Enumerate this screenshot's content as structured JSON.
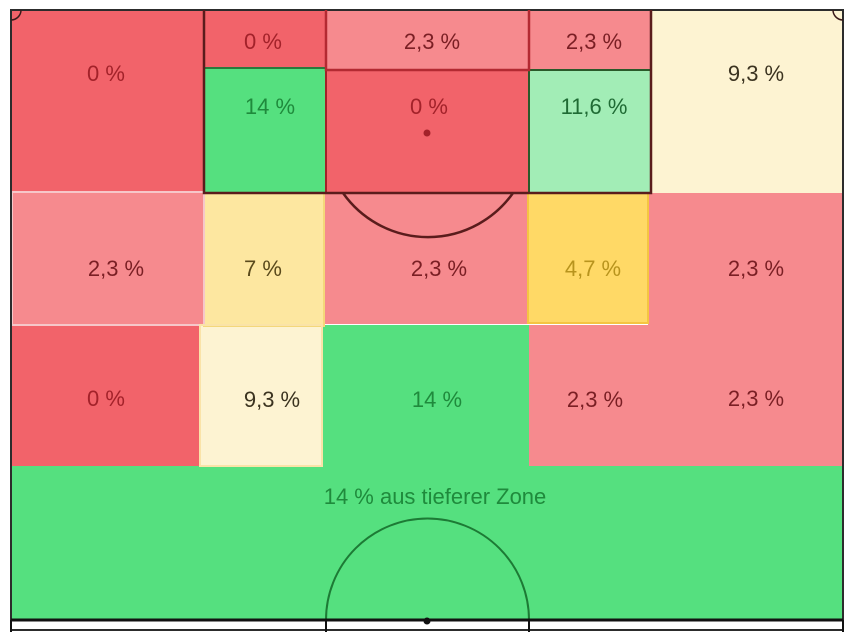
{
  "chart_data": {
    "type": "heatmap",
    "title": "",
    "cells": [
      {
        "id": "left-wing-top",
        "label": "0 %",
        "value": 0,
        "color": "#f2636a",
        "text_color": "#a3222a"
      },
      {
        "id": "halfspace-left-top",
        "label": "0 %",
        "value": 0,
        "color": "#f2636a",
        "text_color": "#a3222a"
      },
      {
        "id": "center-top",
        "label": "2,3 %",
        "value": 2.3,
        "color": "#f68a8e",
        "text_color": "#7a1f24"
      },
      {
        "id": "halfspace-right-top",
        "label": "2,3 %",
        "value": 2.3,
        "color": "#f68a8e",
        "text_color": "#7a1f24"
      },
      {
        "id": "right-wing-top",
        "label": "9,3 %",
        "value": 9.3,
        "color": "#fdf3d2",
        "text_color": "#3b3320"
      },
      {
        "id": "halfspace-left-box",
        "label": "14 %",
        "value": 14,
        "color": "#55e07f",
        "text_color": "#1f8a3c"
      },
      {
        "id": "center-box",
        "label": "0 %",
        "value": 0,
        "color": "#f2636a",
        "text_color": "#a3222a"
      },
      {
        "id": "halfspace-right-box",
        "label": "11,6 %",
        "value": 11.6,
        "color": "#a2edb6",
        "text_color": "#1f6b34"
      },
      {
        "id": "left-wing-mid",
        "label": "2,3 %",
        "value": 2.3,
        "color": "#f68a8e",
        "text_color": "#7a1f24"
      },
      {
        "id": "halfspace-left-mid",
        "label": "7 %",
        "value": 7,
        "color": "#fde7a0",
        "text_color": "#5a4a1c"
      },
      {
        "id": "center-mid",
        "label": "2,3 %",
        "value": 2.3,
        "color": "#f68a8e",
        "text_color": "#7a1f24"
      },
      {
        "id": "halfspace-right-mid",
        "label": "4,7 %",
        "value": 4.7,
        "color": "#ffd966",
        "text_color": "#b8941d"
      },
      {
        "id": "right-wing-mid",
        "label": "2,3 %",
        "value": 2.3,
        "color": "#f68a8e",
        "text_color": "#7a1f24"
      },
      {
        "id": "left-wing-low",
        "label": "0 %",
        "value": 0,
        "color": "#f2636a",
        "text_color": "#a3222a"
      },
      {
        "id": "halfspace-left-low",
        "label": "9,3 %",
        "value": 9.3,
        "color": "#fdf3d2",
        "text_color": "#3b3320"
      },
      {
        "id": "center-low",
        "label": "14 %",
        "value": 14,
        "color": "#55e07f",
        "text_color": "#1f8a3c"
      },
      {
        "id": "halfspace-right-low",
        "label": "2,3 %",
        "value": 2.3,
        "color": "#f68a8e",
        "text_color": "#7a1f24"
      },
      {
        "id": "right-wing-low",
        "label": "2,3 %",
        "value": 2.3,
        "color": "#f68a8e",
        "text_color": "#7a1f24"
      }
    ],
    "deeper_zone": {
      "label": "14 % aus tieferer Zone",
      "value": 14,
      "color": "#55e07f",
      "text_color": "#1f8a3c"
    }
  }
}
